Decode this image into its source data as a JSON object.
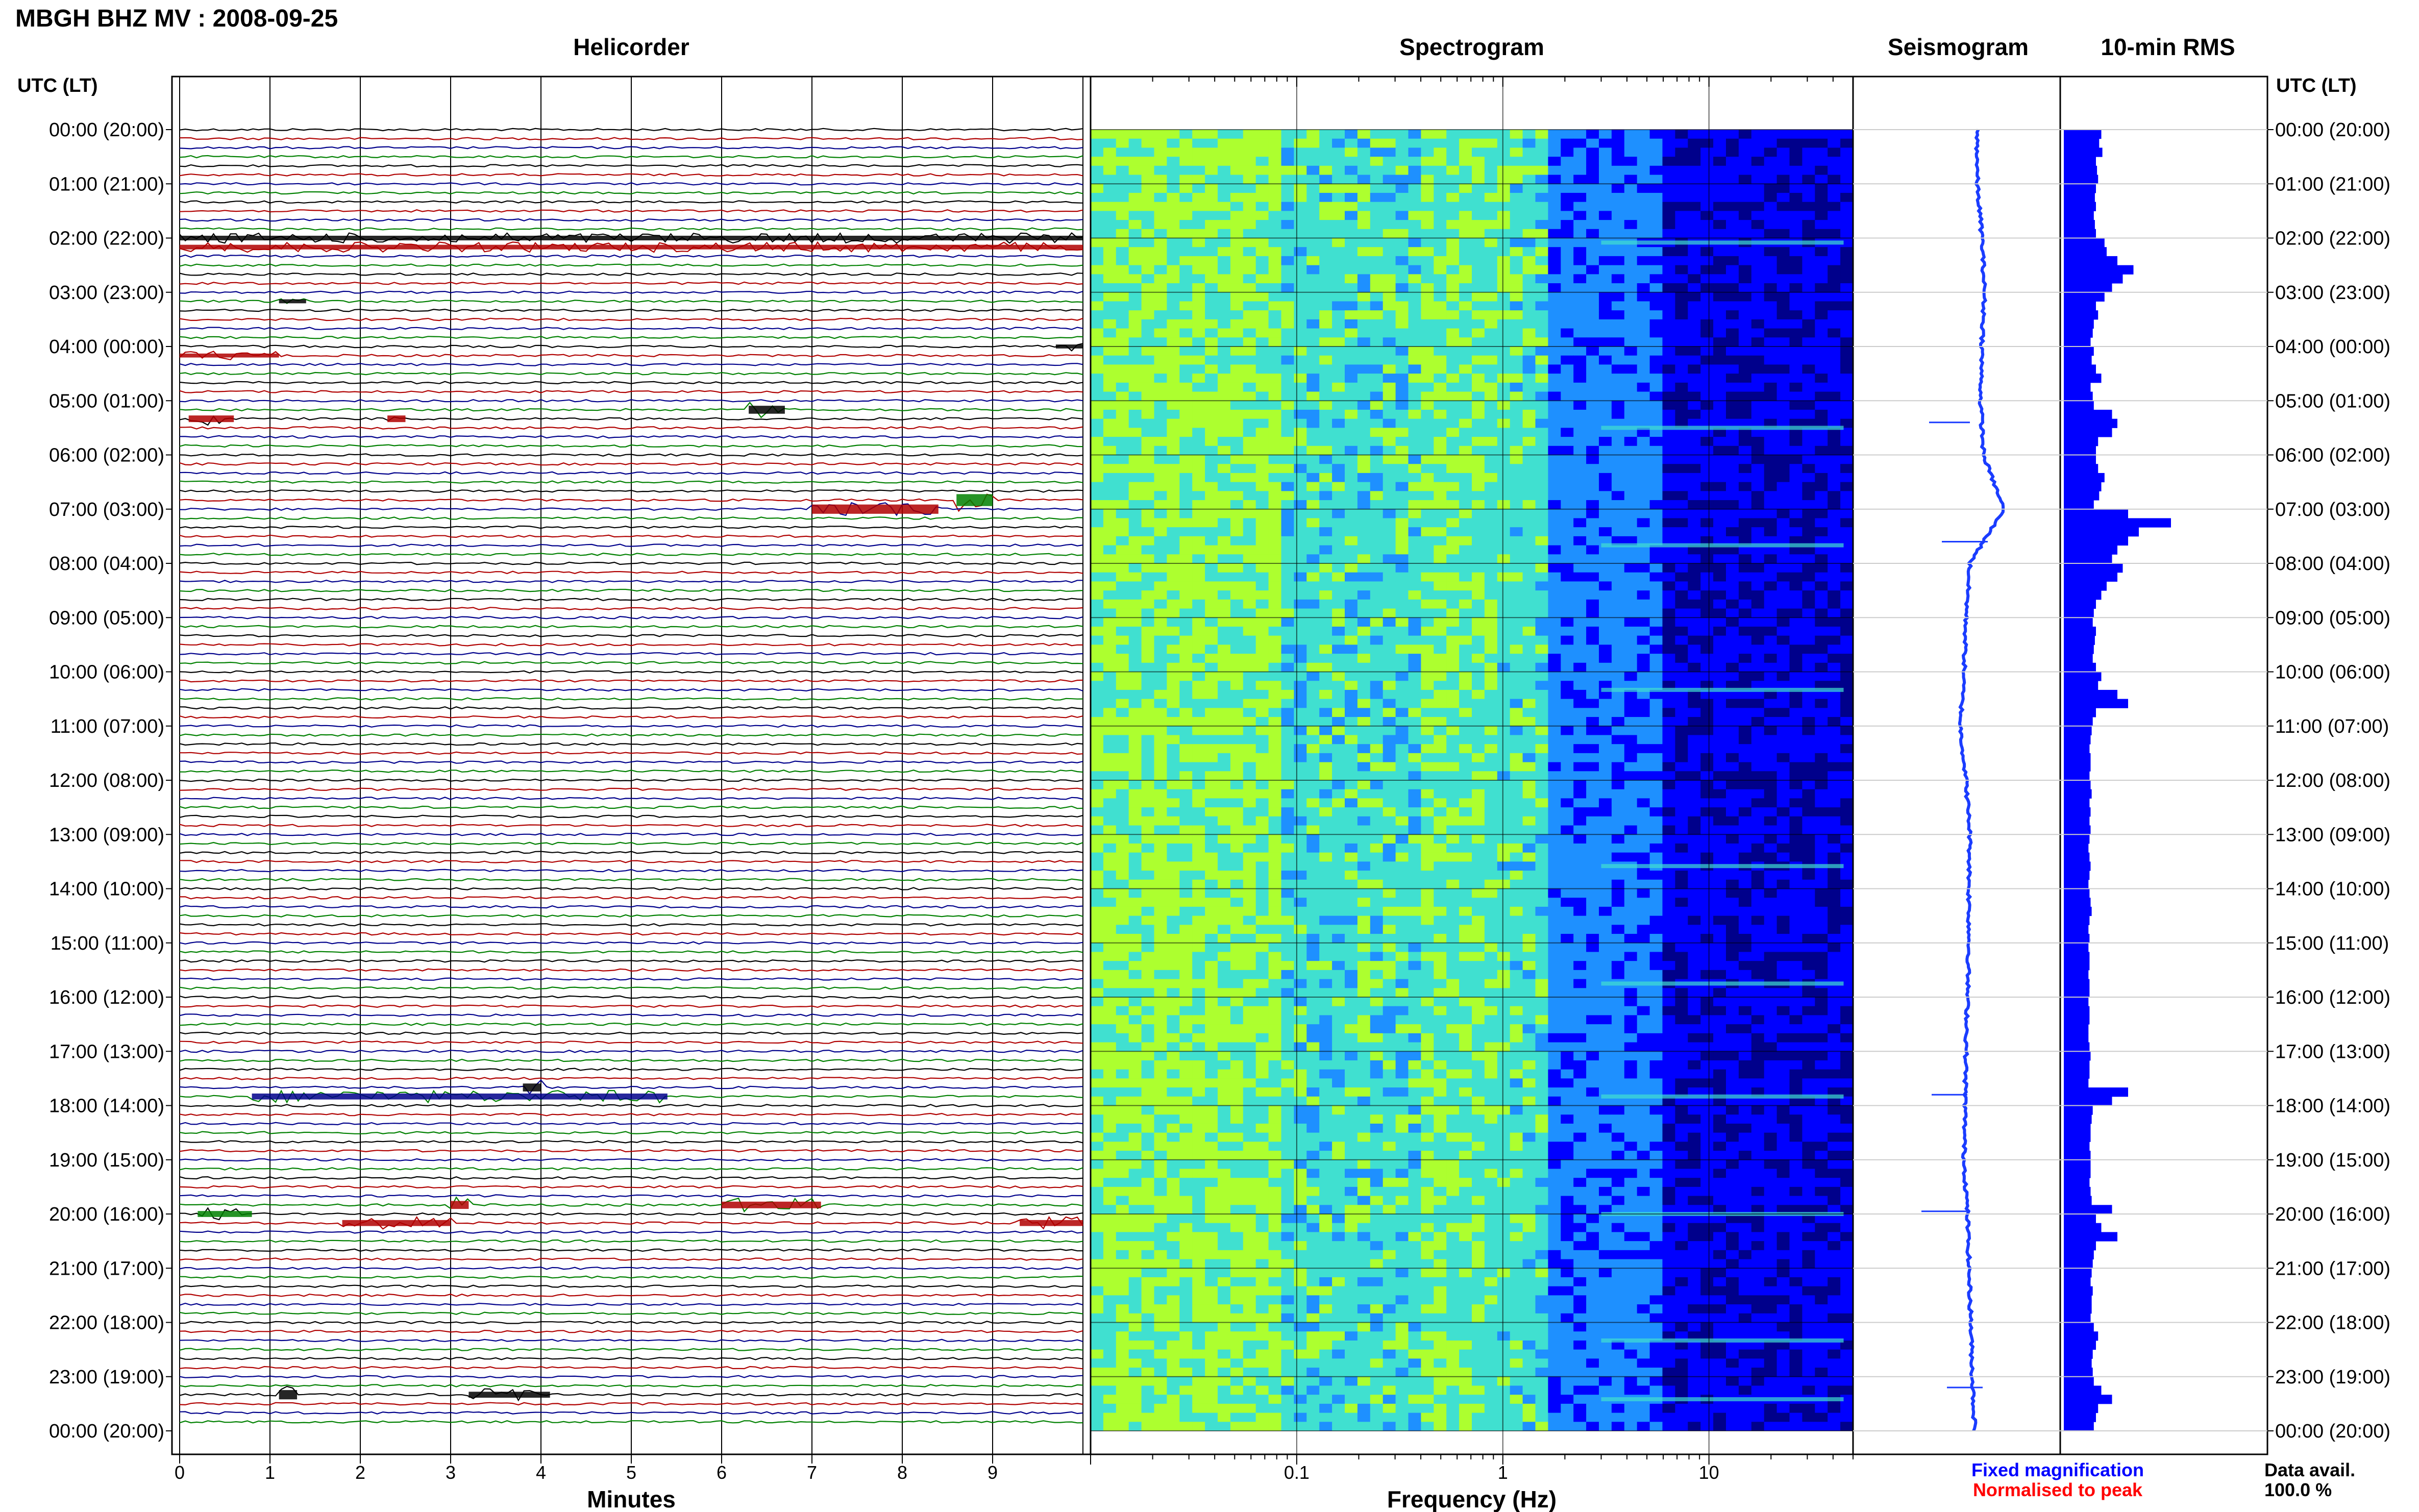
{
  "title": "MBGH BHZ MV : 2008-09-25",
  "axis_header_left": "UTC (LT)",
  "axis_header_right": "UTC (LT)",
  "panels": {
    "helicorder": "Helicorder",
    "spectrogram": "Spectrogram",
    "seismogram": "Seismogram",
    "rms": "10-min RMS"
  },
  "time_labels": [
    "00:00 (20:00)",
    "01:00 (21:00)",
    "02:00 (22:00)",
    "03:00 (23:00)",
    "04:00 (00:00)",
    "05:00 (01:00)",
    "06:00 (02:00)",
    "07:00 (03:00)",
    "08:00 (04:00)",
    "09:00 (05:00)",
    "10:00 (06:00)",
    "11:00 (07:00)",
    "12:00 (08:00)",
    "13:00 (09:00)",
    "14:00 (10:00)",
    "15:00 (11:00)",
    "16:00 (12:00)",
    "17:00 (13:00)",
    "18:00 (14:00)",
    "19:00 (15:00)",
    "20:00 (16:00)",
    "21:00 (17:00)",
    "22:00 (18:00)",
    "23:00 (19:00)",
    "00:00 (20:00)"
  ],
  "helicorder_xticks": [
    "0",
    "1",
    "2",
    "3",
    "4",
    "5",
    "6",
    "7",
    "8",
    "9"
  ],
  "helicorder_xlabel": "Minutes",
  "spectrogram_xticks": [
    "0.1",
    "1",
    "10"
  ],
  "spectrogram_xlabel": "Frequency (Hz)",
  "legend": {
    "fixed": "Fixed magnification",
    "normalised": "Normalised to peak"
  },
  "data_avail_label": "Data avail.",
  "data_avail_value": "100.0 %",
  "colors": {
    "trace_cycle": [
      "#000000",
      "#b00000",
      "#00008b",
      "#008000"
    ],
    "rms_bar": "#0000ff",
    "seismogram": "#1a3cff",
    "legend_fixed": "#0000ff",
    "legend_normalised": "#ff0000"
  },
  "chart_data": [
    {
      "type": "line",
      "title": "Helicorder",
      "xlabel": "Minutes",
      "xlim": [
        0,
        10
      ],
      "ylabel": "UTC (LT)",
      "row_minutes": 10,
      "rows": 144,
      "events": [
        {
          "time_utc": "02:00",
          "minute_start": 0.0,
          "minute_end": 10.0,
          "amp": 0.35,
          "color": "#000000"
        },
        {
          "time_utc": "02:10",
          "minute_start": 0.0,
          "minute_end": 10.0,
          "amp": 0.35,
          "color": "#b00000"
        },
        {
          "time_utc": "03:10",
          "minute_start": 1.1,
          "minute_end": 1.4,
          "amp": 0.3,
          "color": "#000000"
        },
        {
          "time_utc": "04:00",
          "minute_start": 9.7,
          "minute_end": 10.0,
          "amp": 0.3,
          "color": "#000000"
        },
        {
          "time_utc": "04:10",
          "minute_start": 0.0,
          "minute_end": 1.1,
          "amp": 0.3,
          "color": "#b00000"
        },
        {
          "time_utc": "05:10",
          "minute_start": 6.3,
          "minute_end": 6.7,
          "amp": 0.6,
          "color": "#000000"
        },
        {
          "time_utc": "05:20",
          "minute_start": 0.1,
          "minute_end": 0.6,
          "amp": 0.5,
          "color": "#b00000"
        },
        {
          "time_utc": "05:20",
          "minute_start": 2.3,
          "minute_end": 2.5,
          "amp": 0.5,
          "color": "#b00000"
        },
        {
          "time_utc": "06:50",
          "minute_start": 8.6,
          "minute_end": 9.0,
          "amp": 0.9,
          "color": "#008000"
        },
        {
          "time_utc": "07:00",
          "minute_start": 7.0,
          "minute_end": 8.4,
          "amp": 0.7,
          "color": "#b00000"
        },
        {
          "time_utc": "17:40",
          "minute_start": 3.8,
          "minute_end": 4.0,
          "amp": 0.6,
          "color": "#000000"
        },
        {
          "time_utc": "17:50",
          "minute_start": 0.8,
          "minute_end": 5.4,
          "amp": 0.45,
          "color": "#00008b"
        },
        {
          "time_utc": "19:50",
          "minute_start": 3.0,
          "minute_end": 3.2,
          "amp": 0.6,
          "color": "#b00000"
        },
        {
          "time_utc": "19:50",
          "minute_start": 6.0,
          "minute_end": 7.1,
          "amp": 0.5,
          "color": "#b00000"
        },
        {
          "time_utc": "20:00",
          "minute_start": 0.2,
          "minute_end": 0.8,
          "amp": 0.45,
          "color": "#008000"
        },
        {
          "time_utc": "20:10",
          "minute_start": 1.8,
          "minute_end": 3.0,
          "amp": 0.45,
          "color": "#b00000"
        },
        {
          "time_utc": "20:10",
          "minute_start": 9.3,
          "minute_end": 10.0,
          "amp": 0.45,
          "color": "#b00000"
        },
        {
          "time_utc": "23:20",
          "minute_start": 1.1,
          "minute_end": 1.3,
          "amp": 0.7,
          "color": "#000000"
        },
        {
          "time_utc": "23:20",
          "minute_start": 3.2,
          "minute_end": 4.1,
          "amp": 0.45,
          "color": "#000000"
        }
      ]
    },
    {
      "type": "heatmap",
      "title": "Spectrogram",
      "xlabel": "Frequency (Hz)",
      "xscale": "log",
      "xlim": [
        0.01,
        50
      ],
      "ylabel": "UTC (LT)",
      "colormap": [
        "#00008b",
        "#0000ff",
        "#1e90ff",
        "#40e0d0",
        "#adff2f"
      ],
      "energetic_bands_hz": [
        0.2,
        0.6
      ],
      "high_freq_lines_utc": [
        "02:05",
        "05:30",
        "07:40",
        "10:20",
        "13:35",
        "15:45",
        "17:50",
        "20:00",
        "22:20",
        "23:25"
      ]
    },
    {
      "type": "line",
      "title": "Seismogram",
      "ylabel": "UTC (LT)",
      "series": [
        {
          "values_hourly": [
            0.15,
            0.15,
            0.25,
            0.3,
            0.25,
            0.22,
            0.28,
            0.7,
            0.0,
            -0.08,
            -0.12,
            -0.2,
            -0.08,
            0.0,
            -0.02,
            -0.02,
            -0.05,
            -0.08,
            -0.1,
            -0.12,
            -0.05,
            -0.02,
            0.02,
            0.05,
            0.1
          ]
        }
      ]
    },
    {
      "type": "bar",
      "title": "10-min RMS",
      "ylabel": "UTC (LT)",
      "orientation": "horizontal",
      "values_per_10min": [
        0.35,
        0.33,
        0.36,
        0.3,
        0.31,
        0.32,
        0.3,
        0.29,
        0.3,
        0.28,
        0.29,
        0.3,
        0.38,
        0.4,
        0.5,
        0.65,
        0.55,
        0.45,
        0.38,
        0.3,
        0.32,
        0.28,
        0.27,
        0.25,
        0.28,
        0.26,
        0.3,
        0.35,
        0.25,
        0.27,
        0.28,
        0.45,
        0.5,
        0.45,
        0.32,
        0.3,
        0.3,
        0.32,
        0.38,
        0.35,
        0.33,
        0.28,
        0.6,
        1.0,
        0.7,
        0.6,
        0.5,
        0.45,
        0.55,
        0.5,
        0.4,
        0.35,
        0.3,
        0.28,
        0.27,
        0.3,
        0.29,
        0.28,
        0.27,
        0.3,
        0.35,
        0.32,
        0.5,
        0.6,
        0.3,
        0.27,
        0.26,
        0.25,
        0.24,
        0.25,
        0.25,
        0.24,
        0.25,
        0.26,
        0.24,
        0.25,
        0.24,
        0.25,
        0.24,
        0.23,
        0.24,
        0.25,
        0.24,
        0.23,
        0.24,
        0.25,
        0.26,
        0.24,
        0.23,
        0.24,
        0.23,
        0.24,
        0.24,
        0.23,
        0.24,
        0.24,
        0.23,
        0.24,
        0.24,
        0.23,
        0.23,
        0.24,
        0.25,
        0.24,
        0.24,
        0.23,
        0.6,
        0.45,
        0.27,
        0.26,
        0.25,
        0.25,
        0.24,
        0.25,
        0.25,
        0.25,
        0.24,
        0.25,
        0.26,
        0.45,
        0.3,
        0.35,
        0.5,
        0.3,
        0.28,
        0.27,
        0.26,
        0.25,
        0.27,
        0.26,
        0.26,
        0.25,
        0.28,
        0.32,
        0.3,
        0.27,
        0.26,
        0.27,
        0.28,
        0.35,
        0.45,
        0.32,
        0.3,
        0.28
      ],
      "color": "#0000ff"
    }
  ]
}
